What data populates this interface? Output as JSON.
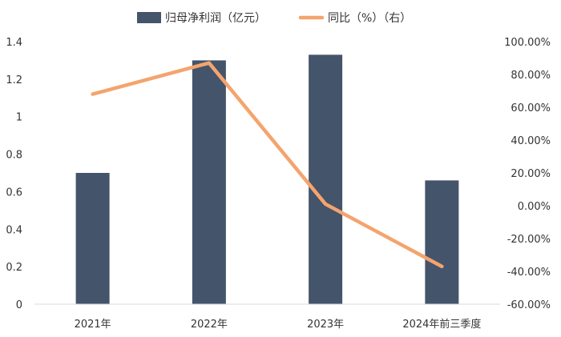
{
  "chart_data": {
    "type": "bar",
    "categories": [
      "2021年",
      "2022年",
      "2023年",
      "2024年前三季度"
    ],
    "series": [
      {
        "name": "归母净利润（亿元）",
        "type": "bar",
        "axis": "left",
        "color": "#44546a",
        "values": [
          0.7,
          1.3,
          1.33,
          0.66
        ]
      },
      {
        "name": "同比（%）（右）",
        "type": "line",
        "axis": "right",
        "color": "#f4a46e",
        "values": [
          68.0,
          87.0,
          1.0,
          -37.0
        ]
      }
    ],
    "left_axis": {
      "min": 0,
      "max": 1.4,
      "ticks": [
        0,
        0.2,
        0.4,
        0.6,
        0.8,
        1,
        1.2,
        1.4
      ],
      "tick_labels": [
        "0",
        "0.2",
        "0.4",
        "0.6",
        "0.8",
        "1",
        "1.2",
        "1.4"
      ]
    },
    "right_axis": {
      "min": -60,
      "max": 100,
      "ticks": [
        -60,
        -40,
        -20,
        0,
        20,
        40,
        60,
        80,
        100
      ],
      "tick_labels": [
        "-60.00%",
        "-40.00%",
        "-20.00%",
        "0.00%",
        "20.00%",
        "40.00%",
        "60.00%",
        "80.00%",
        "100.00%"
      ]
    },
    "grid": false,
    "legend_position": "top"
  }
}
